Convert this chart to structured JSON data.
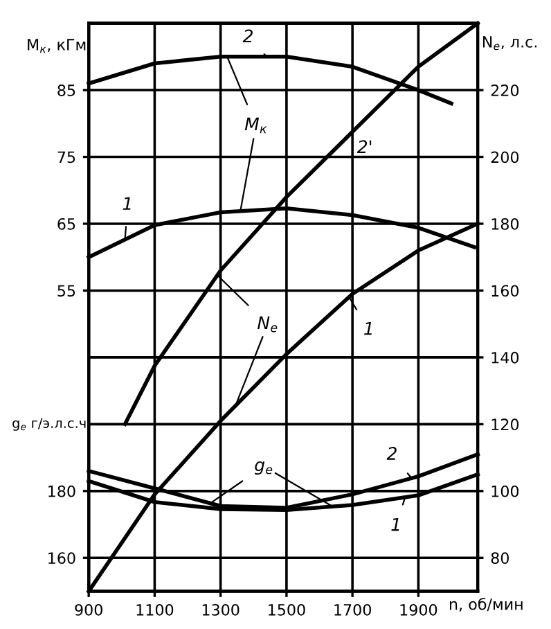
{
  "chart_data": {
    "type": "line",
    "xlabel": "n, об/мин",
    "ylabel": "M$_{к}$, кГм",
    "y2label": "N$_{e}$, л.с.",
    "y3label": "g$_{e}$ г/э.л.с.ч",
    "xlim": [
      900,
      2080
    ],
    "xticks": [
      900,
      1100,
      1300,
      1500,
      1700,
      1900
    ],
    "ylim": [
      10,
      95
    ],
    "yticks": [
      55,
      65,
      75,
      85
    ],
    "y2lim": [
      70,
      240
    ],
    "y2ticks": [
      80,
      100,
      120,
      140,
      160,
      180,
      200,
      220
    ],
    "y3lim": [
      150,
      320
    ],
    "y3ticks": [
      160,
      180
    ],
    "grid": true,
    "annotations": [
      {
        "text": "2",
        "x": 1440,
        "y": 90
      },
      {
        "text": "1",
        "x": 1010,
        "y": 62.6
      },
      {
        "text": "2'",
        "x": 1715,
        "y": 79.5
      },
      {
        "text": "1",
        "x": 1690,
        "y": 54
      },
      {
        "text": "2",
        "x": 1880,
        "y": 26.9
      },
      {
        "text": "1",
        "x": 1860,
        "y": 24.1
      },
      {
        "text": "M$_{к}$",
        "x": 1320,
        "y": 90
      },
      {
        "text": "N$_{e}$",
        "x": 1290,
        "y": 57.3
      },
      {
        "text": "g$_{e}$",
        "x": 1270,
        "y": 23.2
      }
    ],
    "series": [
      {
        "color": "#000000",
        "axis": "y",
        "x": [
          900,
          1100,
          1300,
          1500,
          1700,
          1900,
          2070
        ],
        "values": [
          60,
          64.8,
          66.7,
          67.3,
          66.3,
          64.4,
          61.5
        ]
      },
      {
        "color": "#000000",
        "axis": "y",
        "x": [
          900,
          1100,
          1300,
          1500,
          1700,
          1900,
          2000
        ],
        "values": [
          86,
          89,
          90,
          90,
          88.5,
          85,
          83
        ]
      },
      {
        "color": "#000000",
        "axis": "y2",
        "x": [
          900,
          1100,
          1300,
          1500,
          1700,
          1900,
          2080
        ],
        "values": [
          70,
          99,
          121,
          141,
          159,
          172,
          180
        ]
      },
      {
        "color": "#000000",
        "axis": "y2",
        "x": [
          1010,
          1100,
          1300,
          1500,
          1700,
          1900,
          2080
        ],
        "values": [
          120,
          137.5,
          166,
          188,
          207.5,
          227,
          240
        ]
      },
      {
        "color": "#000000",
        "axis": "y3",
        "x": [
          900,
          1100,
          1300,
          1500,
          1700,
          1900,
          2080
        ],
        "values": [
          183,
          176.7,
          174.6,
          174.3,
          175.8,
          178.7,
          185
        ]
      },
      {
        "color": "#000000",
        "axis": "y3",
        "x": [
          900,
          1100,
          1300,
          1500,
          1700,
          1900,
          2080
        ],
        "values": [
          186,
          180.8,
          175.5,
          175,
          179,
          184.4,
          191
        ]
      }
    ]
  }
}
